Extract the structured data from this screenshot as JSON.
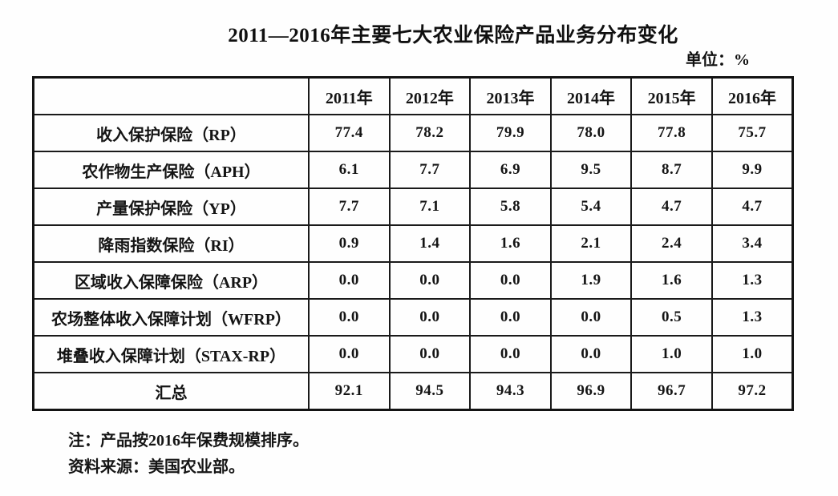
{
  "title": "2011—2016年主要七大农业保险产品业务分布变化",
  "unit_label": "单位：%",
  "chart_data": {
    "type": "table",
    "title": "2011—2016年主要七大农业保险产品业务分布变化",
    "unit": "%",
    "columns": [
      "",
      "2011年",
      "2012年",
      "2013年",
      "2014年",
      "2015年",
      "2016年"
    ],
    "rows": [
      {
        "label": "收入保护保险（RP）",
        "values": [
          "77.4",
          "78.2",
          "79.9",
          "78.0",
          "77.8",
          "75.7"
        ]
      },
      {
        "label": "农作物生产保险（APH）",
        "values": [
          "6.1",
          "7.7",
          "6.9",
          "9.5",
          "8.7",
          "9.9"
        ]
      },
      {
        "label": "产量保护保险（YP）",
        "values": [
          "7.7",
          "7.1",
          "5.8",
          "5.4",
          "4.7",
          "4.7"
        ]
      },
      {
        "label": "降雨指数保险（RI）",
        "values": [
          "0.9",
          "1.4",
          "1.6",
          "2.1",
          "2.4",
          "3.4"
        ]
      },
      {
        "label": "区域收入保障保险（ARP）",
        "values": [
          "0.0",
          "0.0",
          "0.0",
          "1.9",
          "1.6",
          "1.3"
        ]
      },
      {
        "label": "农场整体收入保障计划（WFRP）",
        "values": [
          "0.0",
          "0.0",
          "0.0",
          "0.0",
          "0.5",
          "1.3"
        ]
      },
      {
        "label": "堆叠收入保障计划（STAX-RP）",
        "values": [
          "0.0",
          "0.0",
          "0.0",
          "0.0",
          "1.0",
          "1.0"
        ]
      },
      {
        "label": "汇总",
        "values": [
          "92.1",
          "94.5",
          "94.3",
          "96.9",
          "96.7",
          "97.2"
        ]
      }
    ]
  },
  "notes": [
    "注：产品按2016年保费规模排序。",
    "资料来源：美国农业部。"
  ]
}
